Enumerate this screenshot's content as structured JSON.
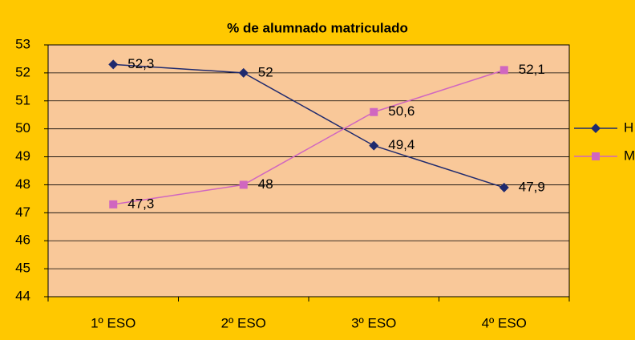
{
  "chart_data": {
    "type": "line",
    "title": "% de alumnado matriculado",
    "categories": [
      "1º ESO",
      "2º ESO",
      "3º ESO",
      "4º ESO"
    ],
    "series": [
      {
        "name": "H",
        "color": "#1f2a6e",
        "marker": "diamond",
        "values": [
          52.3,
          52,
          49.4,
          47.9
        ],
        "value_labels": [
          "52,3",
          "52",
          "49,4",
          "47,9"
        ]
      },
      {
        "name": "M",
        "color": "#d066c0",
        "marker": "square",
        "values": [
          47.3,
          48,
          50.6,
          52.1
        ],
        "value_labels": [
          "47,3",
          "48",
          "50,6",
          "52,1"
        ]
      }
    ],
    "ylim": [
      44,
      53
    ],
    "yticks": [
      44,
      45,
      46,
      47,
      48,
      49,
      50,
      51,
      52,
      53
    ],
    "grid": true,
    "legend": "right"
  }
}
